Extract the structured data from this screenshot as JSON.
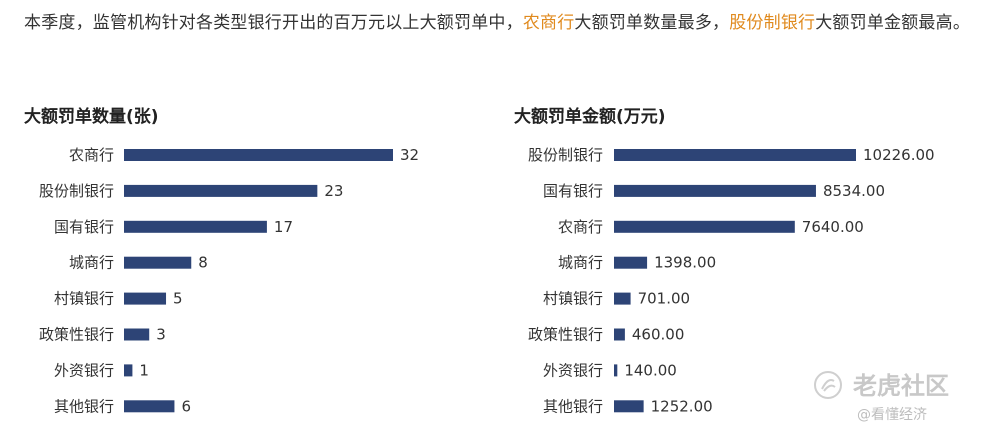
{
  "intro": {
    "part1": "本季度，监管机构针对各类型银行开出的百万元以上大额罚单中，",
    "highlight1": "农商行",
    "part2": "大额罚单数量最多，",
    "highlight2": "股份制银行",
    "part3": "大额罚单金额最高。"
  },
  "colors": {
    "bar": "#2d4476",
    "highlight": "#e08a1e",
    "text": "#333333"
  },
  "chart_data": [
    {
      "type": "bar",
      "orientation": "horizontal",
      "title": "大额罚单数量(张)",
      "categories": [
        "农商行",
        "股份制银行",
        "国有银行",
        "城商行",
        "村镇银行",
        "政策性银行",
        "外资银行",
        "其他银行"
      ],
      "values": [
        32,
        23,
        17,
        8,
        5,
        3,
        1,
        6
      ],
      "value_labels": [
        "32",
        "23",
        "17",
        "8",
        "5",
        "3",
        "1",
        "6"
      ],
      "xlim": [
        0,
        32
      ],
      "grid": false
    },
    {
      "type": "bar",
      "orientation": "horizontal",
      "title": "大额罚单金额(万元)",
      "categories": [
        "股份制银行",
        "国有银行",
        "农商行",
        "城商行",
        "村镇银行",
        "政策性银行",
        "外资银行",
        "其他银行"
      ],
      "values": [
        10226.0,
        8534.0,
        7640.0,
        1398.0,
        701.0,
        460.0,
        140.0,
        1252.0
      ],
      "value_labels": [
        "10226.00",
        "8534.00",
        "7640.00",
        "1398.00",
        "701.00",
        "460.00",
        "140.00",
        "1252.00"
      ],
      "xlim": [
        0,
        10226
      ],
      "grid": false
    }
  ],
  "watermark": {
    "main": "老虎社区",
    "sub": "@看懂经济"
  }
}
